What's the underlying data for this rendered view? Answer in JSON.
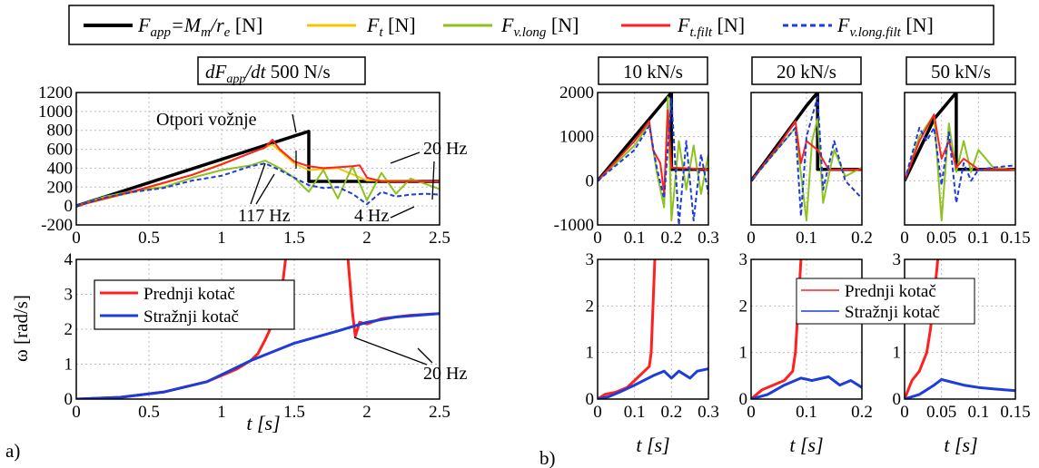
{
  "legend_top": [
    {
      "label": "F_app=M_m/r_e [N]",
      "color": "#000000",
      "dash": false
    },
    {
      "label": "F_t [N]",
      "color": "#f5c400",
      "dash": false
    },
    {
      "label": "F_v.long [N]",
      "color": "#8dc21f",
      "dash": false
    },
    {
      "label": "F_t.filt [N]",
      "color": "#ff2020",
      "dash": false
    },
    {
      "label": "F_v.long.filt [N]",
      "color": "#1e3cd8",
      "dash": true
    }
  ],
  "legend_top_text": {
    "app_main": "F",
    "app_sub": "app",
    "app_eq": "=M",
    "m_sub": "m",
    "slash": "/r",
    "e_sub": "e",
    "unit": " [N]",
    "t_main": "F",
    "t_sub": "t",
    "v_main": "F",
    "v_sub": "v.long",
    "tf_main": "F",
    "tf_sub": "t.filt",
    "vf_main": "F",
    "vf_sub": "v.long.filt"
  },
  "panel_a": {
    "title_main": "dF",
    "title_sub": "app",
    "title_rest": "/dt",
    "title_value": " 500 N/s",
    "panel_label": "a)",
    "annotations": {
      "otpori": "Otpori vožnje",
      "hz20_top": "20 Hz",
      "hz117": "117 Hz",
      "hz4": "4 Hz",
      "hz20_bottom": "20 Hz"
    },
    "ylabel_bottom": "ω [rad/s]",
    "xlabel_bottom": "t [s]",
    "legend": [
      "Prednji kotač",
      "Stražnji kotač"
    ]
  },
  "panel_b": {
    "panel_label": "b)",
    "titles": [
      "10 kN/s",
      "20 kN/s",
      "50 kN/s"
    ],
    "xlabel": "t [s]",
    "legend": [
      "Prednji kotač",
      "Stražnji kotač"
    ]
  },
  "colors": {
    "app": "#000000",
    "t": "#f5c400",
    "vlong": "#8dc21f",
    "tfilt": "#ff2020",
    "vfilt": "#1e3cd8",
    "front": "#ff2020",
    "rear": "#1e3cd8"
  },
  "chart_data": [
    {
      "type": "line",
      "id": "a_top",
      "xlim": [
        0,
        2.5
      ],
      "ylim": [
        -200,
        1200
      ],
      "xticks": [
        0,
        0.5,
        1,
        1.5,
        2,
        2.5
      ],
      "yticks": [
        -200,
        0,
        200,
        400,
        600,
        800,
        1000,
        1200
      ],
      "series": [
        {
          "name": "F_app",
          "color": "#000000",
          "x": [
            0,
            1.6,
            1.6,
            2.5
          ],
          "y": [
            0,
            790,
            260,
            260
          ]
        },
        {
          "name": "F_t",
          "color": "#f5c400",
          "x": [
            0,
            0.4,
            0.8,
            1.2,
            1.35,
            1.5,
            1.6,
            1.8,
            2.0,
            2.5
          ],
          "y": [
            0,
            150,
            330,
            560,
            650,
            450,
            380,
            400,
            270,
            260
          ]
        },
        {
          "name": "F_v.long",
          "color": "#8dc21f",
          "x": [
            0,
            0.2,
            0.4,
            0.6,
            0.8,
            1.0,
            1.2,
            1.3,
            1.4,
            1.5,
            1.6,
            1.7,
            1.8,
            1.9,
            2.0,
            2.1,
            2.2,
            2.3,
            2.5
          ],
          "y": [
            0,
            100,
            160,
            200,
            300,
            380,
            430,
            480,
            400,
            300,
            150,
            380,
            80,
            420,
            60,
            350,
            130,
            290,
            180
          ]
        },
        {
          "name": "F_t.filt",
          "color": "#ff2020",
          "x": [
            0,
            0.4,
            0.8,
            1.0,
            1.2,
            1.3,
            1.35,
            1.4,
            1.5,
            1.6,
            1.7,
            1.8,
            1.9,
            1.95,
            2.0,
            2.1,
            2.5
          ],
          "y": [
            0,
            160,
            330,
            440,
            560,
            620,
            700,
            600,
            470,
            420,
            400,
            410,
            420,
            430,
            300,
            260,
            260
          ]
        },
        {
          "name": "F_v.long.filt",
          "color": "#1e3cd8",
          "x": [
            0,
            0.2,
            0.4,
            0.6,
            0.8,
            1.0,
            1.2,
            1.3,
            1.4,
            1.5,
            1.6,
            1.7,
            1.8,
            1.9,
            2.0,
            2.1,
            2.2,
            2.3,
            2.4,
            2.5
          ],
          "y": [
            0,
            90,
            150,
            190,
            270,
            320,
            420,
            450,
            380,
            300,
            220,
            190,
            200,
            130,
            20,
            150,
            100,
            120,
            130,
            120
          ]
        }
      ]
    },
    {
      "type": "line",
      "id": "a_bottom",
      "xlim": [
        0,
        2.5
      ],
      "ylim": [
        0,
        4
      ],
      "xticks": [
        0,
        0.5,
        1,
        1.5,
        2,
        2.5
      ],
      "yticks": [
        0,
        1,
        2,
        3,
        4
      ],
      "series": [
        {
          "name": "Prednji kotač",
          "color": "#ff2020",
          "x": [
            0,
            0.3,
            0.6,
            0.9,
            1.1,
            1.2,
            1.25,
            1.3,
            1.4,
            1.44
          ],
          "y": [
            0,
            0.05,
            0.2,
            0.5,
            0.85,
            1.1,
            1.3,
            1.7,
            2.6,
            4.0
          ]
        },
        {
          "name": "Prednji kotač b",
          "color": "#ff2020",
          "x": [
            1.87,
            1.9,
            1.92,
            1.95,
            2.0,
            2.1,
            2.2,
            2.3,
            2.5
          ],
          "y": [
            4.0,
            2.5,
            1.8,
            2.2,
            2.15,
            2.3,
            2.35,
            2.4,
            2.45
          ]
        },
        {
          "name": "Stražnji kotač",
          "color": "#1e3cd8",
          "x": [
            0,
            0.3,
            0.6,
            0.9,
            1.2,
            1.5,
            1.8,
            2.0,
            2.2,
            2.5
          ],
          "y": [
            0,
            0.05,
            0.2,
            0.5,
            1.1,
            1.6,
            1.95,
            2.2,
            2.35,
            2.45
          ]
        }
      ]
    },
    {
      "type": "line",
      "id": "b1_top",
      "xlim": [
        0,
        0.3
      ],
      "ylim": [
        -1000,
        2000
      ],
      "xticks": [
        0,
        0.1,
        0.2,
        0.3
      ],
      "yticks": [
        -1000,
        0,
        1000,
        2000
      ],
      "series": [
        {
          "name": "F_app",
          "color": "#000000",
          "x": [
            0,
            0.2,
            0.2,
            0.3
          ],
          "y": [
            0,
            2000,
            260,
            260
          ]
        },
        {
          "name": "F_v.long",
          "color": "#8dc21f",
          "x": [
            0,
            0.1,
            0.14,
            0.16,
            0.18,
            0.19,
            0.2,
            0.22,
            0.24,
            0.26,
            0.28,
            0.3
          ],
          "y": [
            0,
            800,
            1300,
            200,
            -600,
            1900,
            -900,
            900,
            -200,
            800,
            -300,
            600
          ]
        },
        {
          "name": "F_t.filt",
          "color": "#ff2020",
          "x": [
            0,
            0.1,
            0.14,
            0.15,
            0.17,
            0.18,
            0.19,
            0.2,
            0.3
          ],
          "y": [
            0,
            900,
            1350,
            700,
            400,
            -300,
            1600,
            300,
            260
          ]
        },
        {
          "name": "F_v.long.filt",
          "color": "#1e3cd8",
          "x": [
            0,
            0.1,
            0.14,
            0.16,
            0.18,
            0.2,
            0.22,
            0.24,
            0.26,
            0.28,
            0.3
          ],
          "y": [
            0,
            700,
            1250,
            300,
            -400,
            1850,
            -1000,
            900,
            -900,
            600,
            -300
          ]
        }
      ]
    },
    {
      "type": "line",
      "id": "b2_top",
      "xlim": [
        0,
        0.2
      ],
      "ylim": [
        -1000,
        2000
      ],
      "xticks": [
        0,
        0.1,
        0.2
      ],
      "yticks": [
        -1000,
        0,
        1000,
        2000
      ],
      "series": [
        {
          "name": "F_app",
          "color": "#000000",
          "x": [
            0,
            0.1,
            0.12,
            0.12,
            0.2
          ],
          "y": [
            0,
            1700,
            2000,
            260,
            260
          ]
        },
        {
          "name": "F_v.long",
          "color": "#8dc21f",
          "x": [
            0,
            0.04,
            0.08,
            0.1,
            0.11,
            0.12,
            0.13,
            0.15,
            0.17,
            0.2
          ],
          "y": [
            0,
            600,
            1200,
            -900,
            900,
            1400,
            -500,
            700,
            100,
            300
          ]
        },
        {
          "name": "F_t.filt",
          "color": "#ff2020",
          "x": [
            0,
            0.05,
            0.08,
            0.09,
            0.1,
            0.12,
            0.14,
            0.2
          ],
          "y": [
            0,
            800,
            1350,
            400,
            900,
            700,
            250,
            260
          ]
        },
        {
          "name": "F_v.long.filt",
          "color": "#1e3cd8",
          "x": [
            0,
            0.04,
            0.08,
            0.09,
            0.1,
            0.12,
            0.13,
            0.15,
            0.17,
            0.2
          ],
          "y": [
            0,
            600,
            1200,
            -800,
            1000,
            1900,
            -200,
            900,
            0,
            -400
          ]
        }
      ]
    },
    {
      "type": "line",
      "id": "b3_top",
      "xlim": [
        0,
        0.15
      ],
      "ylim": [
        -1000,
        2000
      ],
      "xticks": [
        0,
        0.05,
        0.1,
        0.15
      ],
      "yticks": [
        -1000,
        0,
        1000,
        2000
      ],
      "series": [
        {
          "name": "F_app",
          "color": "#000000",
          "x": [
            0,
            0.04,
            0.07,
            0.07,
            0.15
          ],
          "y": [
            0,
            1400,
            2000,
            260,
            260
          ]
        },
        {
          "name": "F_v.long",
          "color": "#8dc21f",
          "x": [
            0,
            0.02,
            0.04,
            0.05,
            0.06,
            0.07,
            0.08,
            0.09,
            0.1,
            0.12,
            0.15
          ],
          "y": [
            0,
            1000,
            1500,
            -900,
            1300,
            200,
            900,
            200,
            700,
            300,
            250
          ]
        },
        {
          "name": "F_t.filt",
          "color": "#ff2020",
          "x": [
            0,
            0.02,
            0.04,
            0.05,
            0.06,
            0.07,
            0.08,
            0.1,
            0.15
          ],
          "y": [
            0,
            900,
            1500,
            500,
            900,
            300,
            500,
            260,
            260
          ]
        },
        {
          "name": "F_v.long.filt",
          "color": "#1e3cd8",
          "x": [
            0,
            0.02,
            0.03,
            0.04,
            0.05,
            0.06,
            0.07,
            0.08,
            0.09,
            0.1,
            0.12,
            0.15
          ],
          "y": [
            0,
            1200,
            900,
            1200,
            -100,
            1100,
            -500,
            400,
            0,
            250,
            300,
            350
          ]
        }
      ]
    },
    {
      "type": "line",
      "id": "b1_bottom",
      "xlim": [
        0,
        0.3
      ],
      "ylim": [
        0,
        3
      ],
      "xticks": [
        0,
        0.1,
        0.2,
        0.3
      ],
      "yticks": [
        0,
        1,
        2,
        3
      ],
      "series": [
        {
          "name": "Prednji kotač",
          "color": "#ff2020",
          "x": [
            0,
            0.02,
            0.05,
            0.08,
            0.1,
            0.12,
            0.14,
            0.145,
            0.15,
            0.155
          ],
          "y": [
            0,
            0.1,
            0.15,
            0.25,
            0.4,
            0.55,
            0.7,
            1.0,
            2.0,
            3.0
          ]
        },
        {
          "name": "Stražnji kotač",
          "color": "#1e3cd8",
          "x": [
            0,
            0.03,
            0.06,
            0.1,
            0.15,
            0.18,
            0.2,
            0.22,
            0.25,
            0.27,
            0.3
          ],
          "y": [
            0,
            0.05,
            0.15,
            0.3,
            0.5,
            0.6,
            0.45,
            0.6,
            0.45,
            0.6,
            0.65
          ]
        }
      ]
    },
    {
      "type": "line",
      "id": "b2_bottom",
      "xlim": [
        0,
        0.2
      ],
      "ylim": [
        0,
        3
      ],
      "xticks": [
        0,
        0.1,
        0.2
      ],
      "yticks": [
        0,
        1,
        2,
        3
      ],
      "series": [
        {
          "name": "Prednji kotač",
          "color": "#ff2020",
          "x": [
            0,
            0.02,
            0.04,
            0.06,
            0.075,
            0.08,
            0.085,
            0.09
          ],
          "y": [
            0,
            0.2,
            0.3,
            0.4,
            0.6,
            1.0,
            2.0,
            3.0
          ]
        },
        {
          "name": "Stražnji kotač",
          "color": "#1e3cd8",
          "x": [
            0,
            0.03,
            0.06,
            0.09,
            0.11,
            0.14,
            0.16,
            0.18,
            0.2
          ],
          "y": [
            0,
            0.1,
            0.3,
            0.45,
            0.4,
            0.48,
            0.3,
            0.4,
            0.25
          ]
        }
      ]
    },
    {
      "type": "line",
      "id": "b3_bottom",
      "xlim": [
        0,
        0.15
      ],
      "ylim": [
        0,
        3
      ],
      "xticks": [
        0,
        0.05,
        0.1,
        0.15
      ],
      "yticks": [
        0,
        1,
        2,
        3
      ],
      "series": [
        {
          "name": "Prednji kotač",
          "color": "#ff2020",
          "x": [
            0,
            0.01,
            0.02,
            0.03,
            0.035,
            0.04,
            0.045
          ],
          "y": [
            0,
            0.4,
            0.6,
            1.0,
            1.5,
            2.2,
            3.0
          ]
        },
        {
          "name": "Stražnji kotač",
          "color": "#1e3cd8",
          "x": [
            0,
            0.02,
            0.04,
            0.05,
            0.06,
            0.08,
            0.1,
            0.12,
            0.15
          ],
          "y": [
            0,
            0.1,
            0.3,
            0.42,
            0.38,
            0.3,
            0.25,
            0.22,
            0.18
          ]
        }
      ]
    }
  ]
}
